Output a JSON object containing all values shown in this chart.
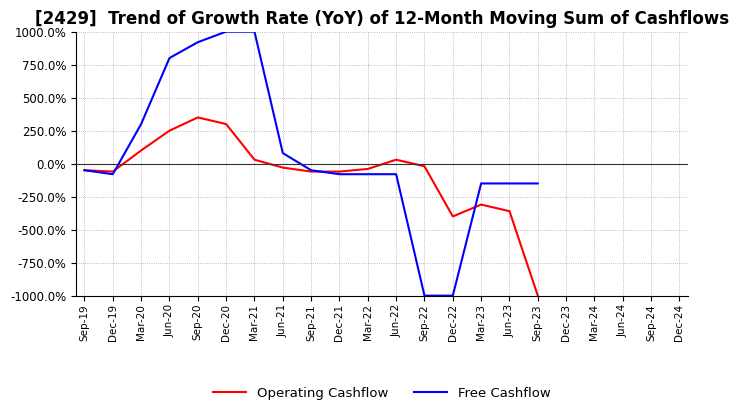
{
  "title": "[2429]  Trend of Growth Rate (YoY) of 12-Month Moving Sum of Cashflows",
  "title_fontsize": 12,
  "ylim": [
    -1000,
    1000
  ],
  "yticks": [
    -1000,
    -750,
    -500,
    -250,
    0,
    250,
    500,
    750,
    1000
  ],
  "x_labels": [
    "Sep-19",
    "Dec-19",
    "Mar-20",
    "Jun-20",
    "Sep-20",
    "Dec-20",
    "Mar-21",
    "Jun-21",
    "Sep-21",
    "Dec-21",
    "Mar-22",
    "Jun-22",
    "Sep-22",
    "Dec-22",
    "Mar-23",
    "Jun-23",
    "Sep-23",
    "Dec-23",
    "Mar-24",
    "Jun-24",
    "Sep-24",
    "Dec-24"
  ],
  "operating_cashflow": [
    -50,
    -60,
    100,
    250,
    350,
    300,
    30,
    -30,
    -60,
    -60,
    -40,
    30,
    -20,
    -400,
    -310,
    -360,
    -1000,
    null,
    null,
    null,
    null,
    null
  ],
  "free_cashflow": [
    -50,
    -80,
    300,
    800,
    920,
    1000,
    1000,
    80,
    -50,
    -80,
    -80,
    -80,
    -1000,
    -1000,
    -150,
    -150,
    -150,
    null,
    null,
    null,
    null,
    null
  ],
  "operating_color": "#FF0000",
  "free_color": "#0000FF",
  "background_color": "#FFFFFF",
  "grid_color": "#AAAAAA",
  "grid_style": "dotted",
  "line_width": 1.5,
  "legend_items": [
    "Operating Cashflow",
    "Free Cashflow"
  ]
}
